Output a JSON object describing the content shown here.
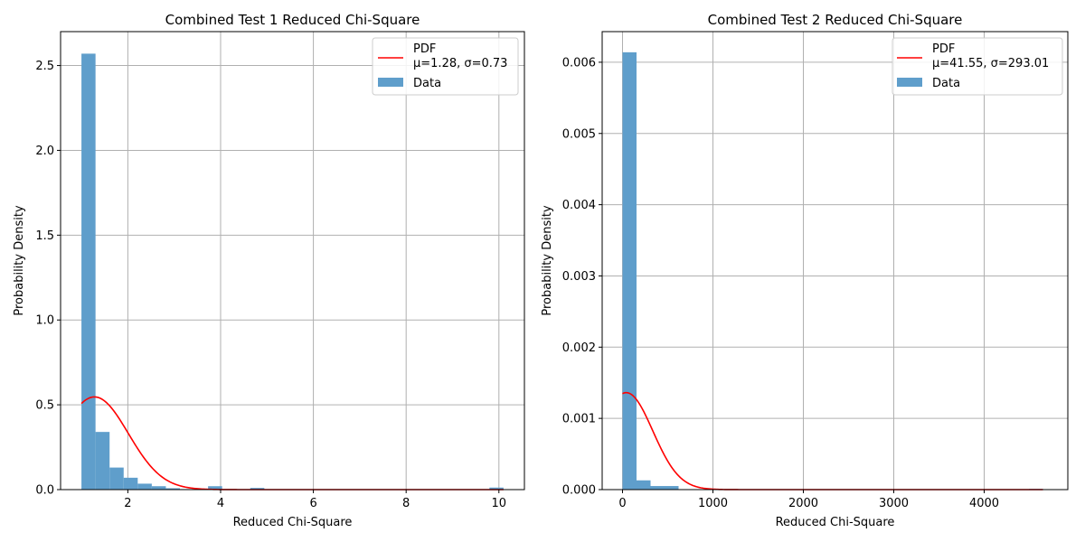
{
  "chart_data": [
    {
      "type": "bar",
      "title": "Combined Test 1 Reduced Chi-Square",
      "xlabel": "Reduced Chi-Square",
      "ylabel": "Probability Density",
      "xlim": [
        0.55,
        10.55
      ],
      "ylim": [
        0,
        2.7
      ],
      "xticks": [
        2,
        4,
        6,
        8,
        10
      ],
      "xtick_labels": [
        "2",
        "4",
        "6",
        "8",
        "10"
      ],
      "yticks": [
        0,
        0.5,
        1.0,
        1.5,
        2.0,
        2.5
      ],
      "ytick_labels": [
        "0.0",
        "0.5",
        "1.0",
        "1.5",
        "2.0",
        "2.5"
      ],
      "grid": true,
      "legend_position": "top-right",
      "histogram": {
        "name": "Data",
        "color": "#5f9ecb",
        "bin_start": 1.0,
        "bin_width": 0.3033,
        "values": [
          2.57,
          0.34,
          0.13,
          0.07,
          0.035,
          0.02,
          0.008,
          0.003,
          0.002,
          0.02,
          0.002,
          0.002,
          0.01,
          0.002,
          0.0,
          0.0,
          0.0,
          0.0,
          0.0,
          0.0,
          0.0,
          0.0,
          0.0,
          0.0,
          0.0,
          0.0,
          0.0,
          0.0,
          0.0,
          0.012
        ]
      },
      "pdf": {
        "name": "PDF",
        "params_label": "μ=1.28, σ=0.73",
        "mu": 1.28,
        "sigma": 0.73,
        "x_range": [
          1.0,
          10.1
        ],
        "color": "#ff0000"
      }
    },
    {
      "type": "bar",
      "title": "Combined Test 2 Reduced Chi-Square",
      "xlabel": "Reduced Chi-Square",
      "ylabel": "Probability Density",
      "xlim": [
        -225,
        4925
      ],
      "ylim": [
        0,
        0.00643
      ],
      "xticks": [
        0,
        1000,
        2000,
        3000,
        4000
      ],
      "xtick_labels": [
        "0",
        "1000",
        "2000",
        "3000",
        "4000"
      ],
      "yticks": [
        0,
        0.001,
        0.002,
        0.003,
        0.004,
        0.005,
        0.006
      ],
      "ytick_labels": [
        "0.000",
        "0.001",
        "0.002",
        "0.003",
        "0.004",
        "0.005",
        "0.006"
      ],
      "grid": true,
      "legend_position": "top-right",
      "histogram": {
        "name": "Data",
        "color": "#5f9ecb",
        "bin_start": 0,
        "bin_width": 155,
        "values": [
          0.00614,
          0.00013,
          5e-05,
          5e-05,
          0.0,
          0.0,
          0.0,
          0.0,
          0.0,
          0.0,
          0.0,
          0.0,
          0.0,
          0.0,
          0.0,
          0.0,
          0.0,
          0.0,
          0.0,
          0.0,
          0.0,
          0.0,
          0.0,
          0.0,
          0.0,
          0.0,
          0.0,
          0.0,
          0.0,
          1e-05
        ]
      },
      "pdf": {
        "name": "PDF",
        "params_label": "μ=41.55, σ=293.01",
        "mu": 41.55,
        "sigma": 293.01,
        "x_range": [
          0,
          4650
        ],
        "color": "#ff0000"
      }
    }
  ]
}
